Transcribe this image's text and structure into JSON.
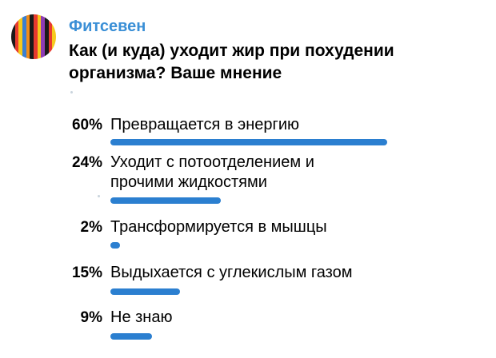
{
  "channel": {
    "name": "Фитсевен"
  },
  "poll": {
    "question": "Как (и куда) уходит жир при похудении организма? Ваше мнение",
    "bar_color": "#2b7fd0",
    "options": [
      {
        "percent": "60%",
        "value": 60,
        "label": "Превращается в энергию"
      },
      {
        "percent": "24%",
        "value": 24,
        "label": "Уходит с потоотделением и прочими жидкостями"
      },
      {
        "percent": "2%",
        "value": 2,
        "label": "Трансформируется в мышцы"
      },
      {
        "percent": "15%",
        "value": 15,
        "label": "Выдыхается с углекислым газом"
      },
      {
        "percent": "9%",
        "value": 9,
        "label": "Не знаю"
      }
    ]
  },
  "avatar": {
    "icon": "striped-logo-icon",
    "colors": [
      "#1a1a1a",
      "#e83a2f",
      "#f6c91c",
      "#3a7fd1",
      "#f08c1a",
      "#1a1a1a",
      "#e83a2f",
      "#f6c91c",
      "#8e3cb5",
      "#1a1a1a",
      "#e83a2f",
      "#f6c91c"
    ]
  }
}
